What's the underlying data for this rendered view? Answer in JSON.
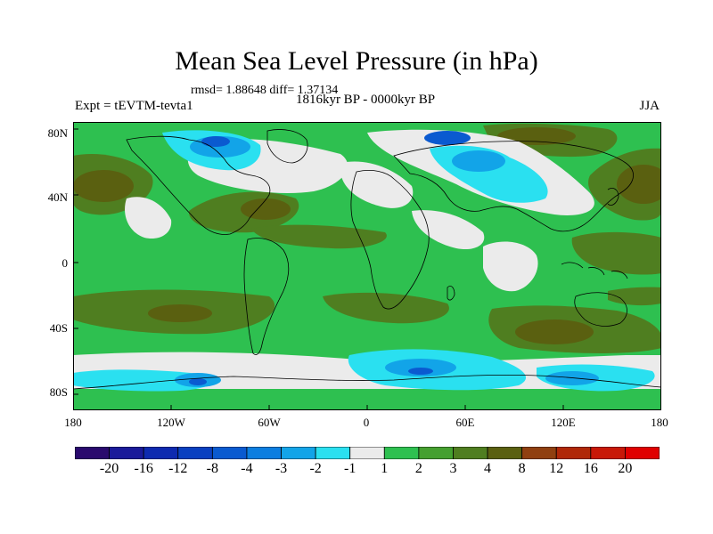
{
  "title": "Mean Sea Level Pressure (in hPa)",
  "stats": "rmsd= 1.88648 diff= 1.37134",
  "experiment": "Expt = tEVTM-tevta1",
  "period": "1816kyr BP - 0000kyr BP",
  "season": "JJA",
  "lat_labels": [
    "80N",
    "40N",
    "0",
    "40S",
    "80S"
  ],
  "lon_labels": [
    "180",
    "120W",
    "60W",
    "0",
    "60E",
    "120E",
    "180"
  ],
  "colorbar": {
    "labels": [
      "-20",
      "-16",
      "-12",
      "-8",
      "-4",
      "-3",
      "-2",
      "-1",
      "1",
      "2",
      "3",
      "4",
      "8",
      "12",
      "16",
      "20"
    ],
    "colors": [
      "#2a0a6e",
      "#1a1a9a",
      "#0e2ab0",
      "#0a40c0",
      "#0a5ad0",
      "#0c7ee0",
      "#12a4e8",
      "#2ae0f0",
      "#ebebeb",
      "#2ec050",
      "#45a030",
      "#4f7e20",
      "#5a6010",
      "#904010",
      "#b02808",
      "#c81808",
      "#e00000"
    ]
  },
  "colors": {
    "background": "#2ec050",
    "neutral": "#ebebeb",
    "positive_mid": "#4f7e20",
    "positive_high": "#5a6010",
    "negative_low": "#2ae0f0",
    "negative_mid": "#12a4e8",
    "negative_high": "#0a5ad0"
  }
}
